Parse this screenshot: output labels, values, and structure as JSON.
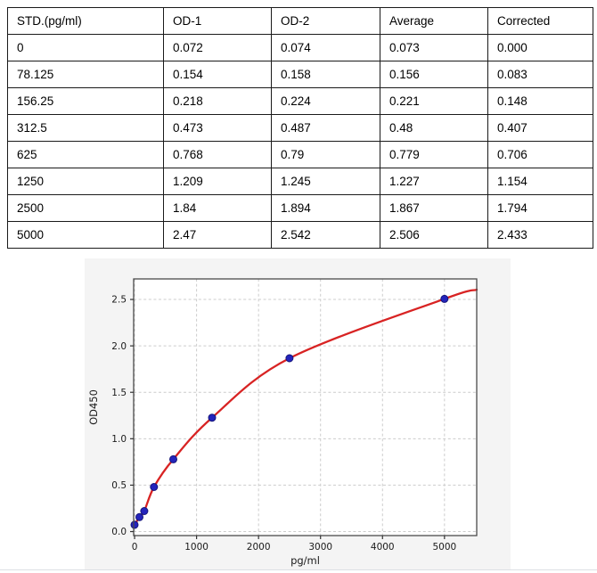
{
  "table": {
    "headers": [
      "STD.(pg/ml)",
      "OD-1",
      "OD-2",
      "Average",
      "Corrected"
    ],
    "rows": [
      [
        "0",
        "0.072",
        "0.074",
        "0.073",
        "0.000"
      ],
      [
        "78.125",
        "0.154",
        "0.158",
        "0.156",
        "0.083"
      ],
      [
        "156.25",
        "0.218",
        "0.224",
        "0.221",
        "0.148"
      ],
      [
        "312.5",
        "0.473",
        "0.487",
        "0.48",
        "0.407"
      ],
      [
        "625",
        "0.768",
        "0.79",
        "0.779",
        "0.706"
      ],
      [
        "1250",
        "1.209",
        "1.245",
        "1.227",
        "1.154"
      ],
      [
        "2500",
        "1.84",
        "1.894",
        "1.867",
        "1.794"
      ],
      [
        "5000",
        "2.47",
        "2.542",
        "2.506",
        "2.433"
      ]
    ]
  },
  "chart_data": {
    "type": "scatter",
    "title": "",
    "xlabel": "pg/ml",
    "ylabel": "OD450",
    "x": [
      0,
      78.125,
      156.25,
      312.5,
      625,
      1250,
      2500,
      5000
    ],
    "y": [
      0.073,
      0.156,
      0.221,
      0.48,
      0.779,
      1.227,
      1.867,
      2.506
    ],
    "fit_curve": {
      "style": "smooth-through-points",
      "start": [
        -15,
        0.062
      ],
      "end": [
        5520,
        2.605
      ]
    },
    "xticks": [
      0,
      1000,
      2000,
      3000,
      4000,
      5000
    ],
    "ytick_labels": [
      "0.0",
      "0.5",
      "1.0",
      "1.5",
      "2.0",
      "2.5"
    ],
    "ytick_values": [
      0,
      0.5,
      1,
      1.5,
      2,
      2.5
    ],
    "xlim": [
      -15,
      5520
    ],
    "ylim": [
      -0.043,
      2.721
    ],
    "grid": true,
    "legend": null,
    "colors": {
      "curve": "#d82323",
      "marker": "#2424bc",
      "marker_edge": "#15157a",
      "figure_bg": "#f4f4f4",
      "plot_bg": "#ffffff",
      "grid": "#cccccc",
      "spine": "#4a4a4a",
      "tick_text": "#1a1a1a"
    }
  }
}
